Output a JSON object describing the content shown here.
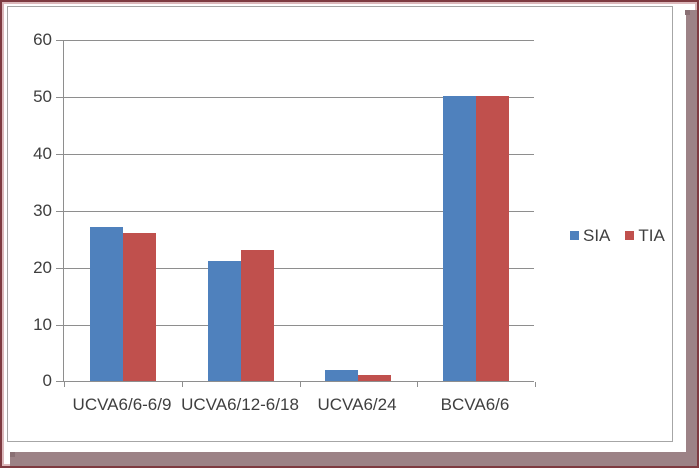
{
  "frame": {
    "outer_border_color": "#7e3b41",
    "inner_line_color": "#dcb8bb",
    "shadow_color": "#9c8286",
    "shadow_notch_color": "#8a7074",
    "panel_border_color": "#a6a6a6",
    "panel_background": "#ffffff"
  },
  "chart_data": {
    "type": "bar",
    "title": "",
    "xlabel": "",
    "ylabel": "",
    "categories": [
      "UCVA6/6-6/9",
      "UCVA6/12-6/18",
      "UCVA6/24",
      "BCVA6/6"
    ],
    "series": [
      {
        "name": "SIA",
        "color": "#4f81bd",
        "values": [
          27,
          21,
          2,
          50
        ]
      },
      {
        "name": "TIA",
        "color": "#c0504d",
        "values": [
          26,
          23,
          1,
          50
        ]
      }
    ],
    "ylim": [
      0,
      60
    ],
    "yticks": [
      0,
      10,
      20,
      30,
      40,
      50,
      60
    ],
    "grid": true,
    "legend_position": "right",
    "gridline_color": "#8e8e8e",
    "text_color": "#3f3f3f"
  }
}
